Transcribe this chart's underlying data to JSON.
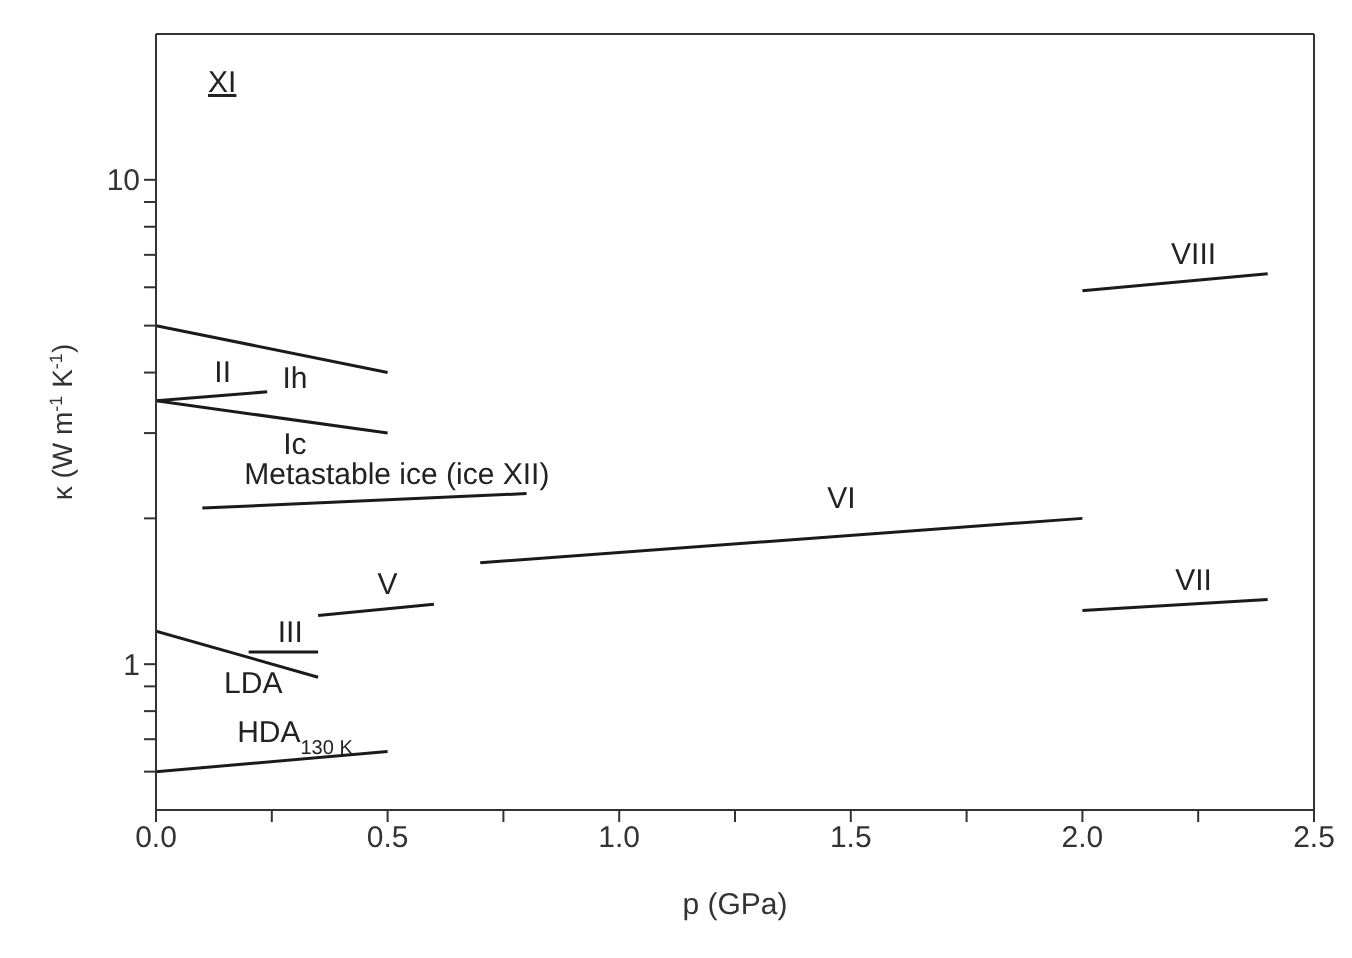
{
  "chart_data": {
    "type": "line",
    "xlabel": "p (GPa)",
    "ylabel": "κ (W m$^{-1}$ K$^{-1}$)",
    "log": "y",
    "marker": "none",
    "line_style": "solid",
    "xlim": [
      0,
      2.5
    ],
    "xticks": [
      {
        "value": 0,
        "label": "0.0"
      },
      {
        "value": 0.25,
        "label": null
      },
      {
        "value": 0.5,
        "label": "0.5"
      },
      {
        "value": 0.75,
        "label": null
      },
      {
        "value": 1.0,
        "label": "1.0"
      },
      {
        "value": 1.25,
        "label": null
      },
      {
        "value": 1.5,
        "label": "1.5"
      },
      {
        "value": 1.75,
        "label": null
      },
      {
        "value": 2.0,
        "label": "2.0"
      },
      {
        "value": 2.25,
        "label": null
      },
      {
        "value": 2.5,
        "label": "2.5"
      }
    ],
    "ylim": [
      0.5,
      20
    ],
    "yticks": [
      {
        "value": 0.6,
        "label": null
      },
      {
        "value": 0.7,
        "label": null
      },
      {
        "value": 0.8,
        "label": null
      },
      {
        "value": 0.9,
        "label": null
      },
      1,
      {
        "value": 2,
        "label": null
      },
      {
        "value": 3,
        "label": null
      },
      {
        "value": 4,
        "label": null
      },
      {
        "value": 5,
        "label": null
      },
      {
        "value": 6,
        "label": null
      },
      {
        "value": 7,
        "label": null
      },
      {
        "value": 8,
        "label": null
      },
      {
        "value": 9,
        "label": null
      },
      10
    ],
    "annotations": [
      "XI"
    ],
    "series": [
      {
        "name": "Ih",
        "color": "#1a1a1a",
        "x": [
          0,
          0.5
        ],
        "values": [
          5.0,
          4.0
        ]
      },
      {
        "name": "II",
        "color": "#1a1a1a",
        "x": [
          0,
          0.24
        ],
        "values": [
          3.5,
          3.65
        ]
      },
      {
        "name": "Ic",
        "color": "#1a1a1a",
        "x": [
          0,
          0.5
        ],
        "values": [
          3.5,
          3.0
        ]
      },
      {
        "name": "Metastable ice (ice XII)",
        "color": "#1a1a1a",
        "x": [
          0.1,
          0.8
        ],
        "values": [
          2.1,
          2.25
        ]
      },
      {
        "name": "VI",
        "color": "#1a1a1a",
        "x": [
          0.7,
          2.0
        ],
        "values": [
          1.62,
          2.0
        ]
      },
      {
        "name": "VIII",
        "color": "#1a1a1a",
        "x": [
          2.0,
          2.4
        ],
        "values": [
          5.9,
          6.4
        ]
      },
      {
        "name": "VII",
        "color": "#1a1a1a",
        "x": [
          2.0,
          2.4
        ],
        "values": [
          1.29,
          1.36
        ]
      },
      {
        "name": "V",
        "color": "#1a1a1a",
        "x": [
          0.35,
          0.6
        ],
        "values": [
          1.26,
          1.33
        ]
      },
      {
        "name": "III",
        "color": "#1a1a1a",
        "x": [
          0.2,
          0.35
        ],
        "values": [
          1.06,
          1.06
        ]
      },
      {
        "name": "LDA",
        "color": "#1a1a1a",
        "x": [
          0,
          0.35
        ],
        "values": [
          1.17,
          0.94
        ]
      },
      {
        "name": "HDA$_{130 K}$",
        "color": "#1a1a1a",
        "x": [
          0,
          0.5
        ],
        "values": [
          0.6,
          0.66
        ]
      }
    ]
  }
}
